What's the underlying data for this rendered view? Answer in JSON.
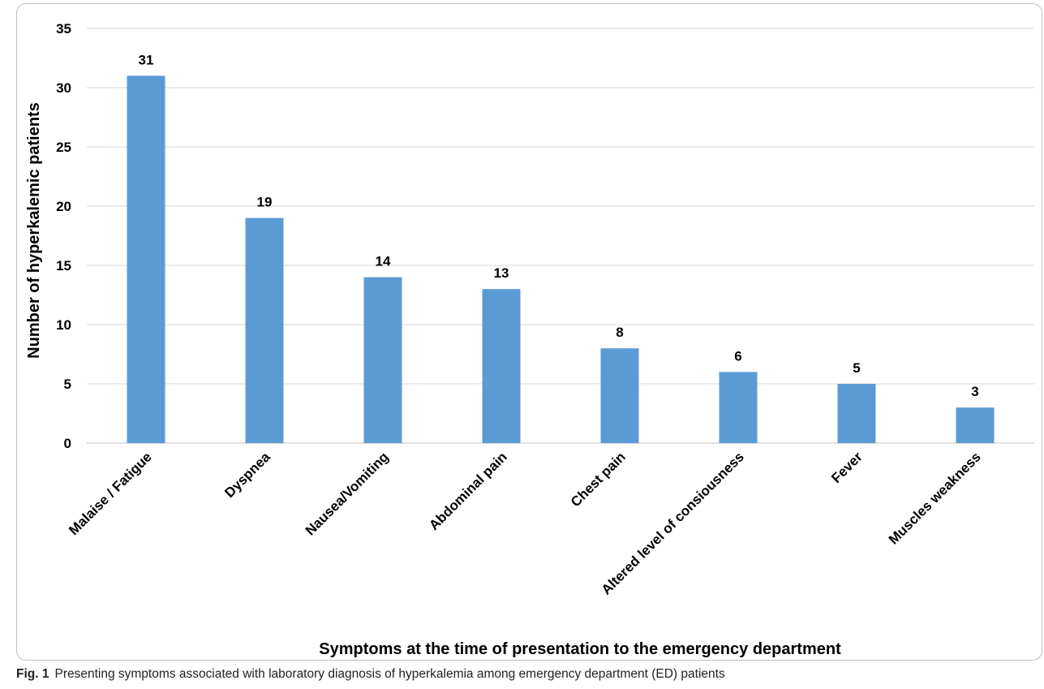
{
  "chart_data": {
    "type": "bar",
    "categories": [
      "Malaise / Fatigue",
      "Dyspnea",
      "Nausea/Vomiting",
      "Abdominal pain",
      "Chest pain",
      "Altered level of consiousness",
      "Fever",
      "Muscles weakness"
    ],
    "values": [
      31,
      19,
      14,
      13,
      8,
      6,
      5,
      3
    ],
    "title": "",
    "xlabel": "Symptoms at the time of presentation to the emergency department",
    "ylabel": "Number of hyperkalemic patients",
    "ylim": [
      0,
      35
    ],
    "yticks": [
      0,
      5,
      10,
      15,
      20,
      25,
      30,
      35
    ],
    "grid": true,
    "legend": "none",
    "bar_color": "#5B9BD5",
    "data_labels": true
  },
  "caption": {
    "label": "Fig. 1",
    "text": "Presenting symptoms associated with laboratory diagnosis of hyperkalemia among emergency department (ED) patients"
  }
}
